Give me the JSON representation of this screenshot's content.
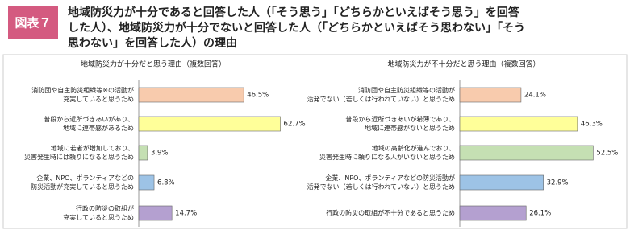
{
  "figure_label": "図表７",
  "title": [
    "地域防災力が十分であると回答した人（「そう思う」「どちらかといえばそう思う」を回答",
    "した人）、地域防災力が十分でないと回答した人（「どちらかといえばそう思わない」「そう",
    "思わない」を回答した人）の理由"
  ],
  "chart_data": [
    {
      "type": "bar",
      "title": "地域防災力が十分だと思う理由（複数回答）",
      "categories": [
        [
          "消防団や自主防災組織等※の活動が",
          "充実していると思うため"
        ],
        [
          "普段から近所づきあいがあり、",
          "地域に連帯感があるため"
        ],
        [
          "地域に若者が増加しており、",
          "災害発生時には頼りになると思うため"
        ],
        [
          "企業、NPO、ボランティアなどの",
          "防災活動が充実していると思うため"
        ],
        [
          "行政の防災の取組が",
          "充実していると思うため"
        ]
      ],
      "values": [
        46.5,
        62.7,
        3.9,
        6.8,
        14.7
      ],
      "value_labels": [
        "46.5%",
        "62.7%",
        "3.9%",
        "6.8%",
        "14.7%"
      ],
      "colors": [
        "#f8cbad",
        "#ffff99",
        "#c5e0b3",
        "#9dc3e6",
        "#b4a0d0"
      ]
    },
    {
      "type": "bar",
      "title": "地域防災力が不十分だと思う理由（複数回答）",
      "categories": [
        [
          "消防団や自主防災組織等の活動が",
          "活発でない（若しくは行われていない）と思うため"
        ],
        [
          "普段から近所づきあいが希薄であり、",
          "地域に連帯感がないと思うため"
        ],
        [
          "地域の高齢化が進んでおり、",
          "災害発生時に頼りになる人がいないと思うため"
        ],
        [
          "企業、NPO、ボランティアなどの防災活動が",
          "活発でない（若しくは行われていない）と思うため"
        ],
        [
          "行政の防災の取組が不十分であると思うため"
        ]
      ],
      "values": [
        24.1,
        46.3,
        52.5,
        32.9,
        26.1
      ],
      "value_labels": [
        "24.1%",
        "46.3%",
        "52.5%",
        "32.9%",
        "26.1%"
      ],
      "colors": [
        "#f8cbad",
        "#ffff99",
        "#c5e0b3",
        "#9dc3e6",
        "#b4a0d0"
      ]
    }
  ]
}
